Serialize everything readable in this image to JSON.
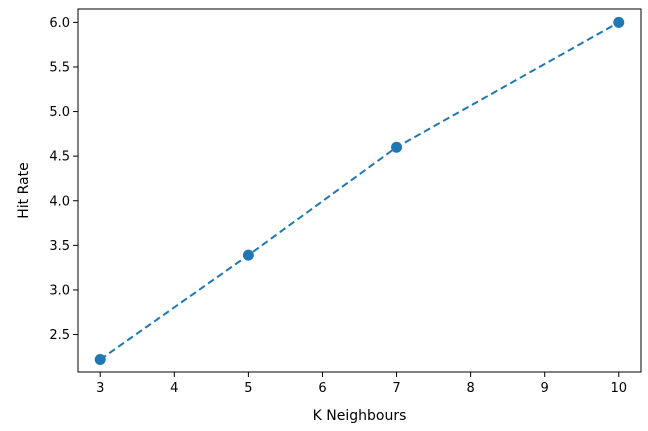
{
  "chart_data": {
    "type": "line",
    "title": "",
    "xlabel": "K Neighbours",
    "ylabel": "Hit Rate",
    "x": [
      3,
      5,
      7,
      10
    ],
    "series": [
      {
        "values": [
          2.22,
          3.39,
          4.6,
          6.0
        ],
        "color": "#1f77b4",
        "line_style": "dashed",
        "marker": "circle"
      }
    ],
    "xlim": [
      2.7,
      10.3
    ],
    "ylim": [
      2.08,
      6.15
    ],
    "xticks": [
      3,
      4,
      5,
      6,
      7,
      8,
      9,
      10
    ],
    "xtick_labels": [
      "3",
      "4",
      "5",
      "6",
      "7",
      "8",
      "9",
      "10"
    ],
    "yticks": [
      2.5,
      3.0,
      3.5,
      4.0,
      4.5,
      5.0,
      5.5,
      6.0
    ],
    "ytick_labels": [
      "2.5",
      "3.0",
      "3.5",
      "4.0",
      "4.5",
      "5.0",
      "5.5",
      "6.0"
    ],
    "grid": false,
    "legend": "none"
  }
}
